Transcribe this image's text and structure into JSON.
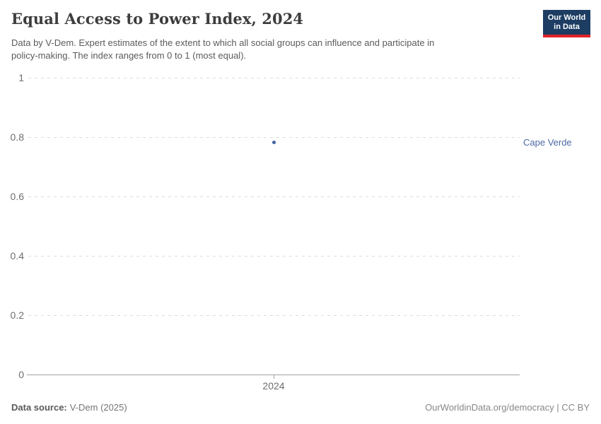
{
  "header": {
    "title": "Equal Access to Power Index, 2024",
    "subtitle_lines": [
      "Data by V-Dem. Expert estimates of the extent to which all social groups can influence and participate in",
      "policy-making. The index ranges from 0 to 1 (most equal)."
    ],
    "logo": {
      "line1": "Our World",
      "line2": "in Data"
    }
  },
  "chart_data": {
    "type": "scatter",
    "title": "Equal Access to Power Index, 2024",
    "x": [
      2024
    ],
    "xticks": [
      "2024"
    ],
    "yticks": [
      "0",
      "0.2",
      "0.4",
      "0.6",
      "0.8",
      "1"
    ],
    "ylim": [
      0,
      1
    ],
    "xlabel": "",
    "ylabel": "",
    "grid": "horizontal-dashed",
    "legend_position": "entity label right of plot",
    "series": [
      {
        "name": "Cape Verde",
        "values": [
          0.78
        ],
        "color": "#44639f"
      }
    ]
  },
  "colors": {
    "point": "#44639f",
    "entity_label": "#4c69a5",
    "logo_bg": "#1d3d63",
    "logo_accent": "#e0232a",
    "gridline": "#dcdcdc",
    "axis_line": "#a1a1a1"
  },
  "footer": {
    "source_label": "Data source:",
    "source_value": "V-Dem (2025)",
    "credit": "OurWorldinData.org/democracy | CC BY"
  }
}
